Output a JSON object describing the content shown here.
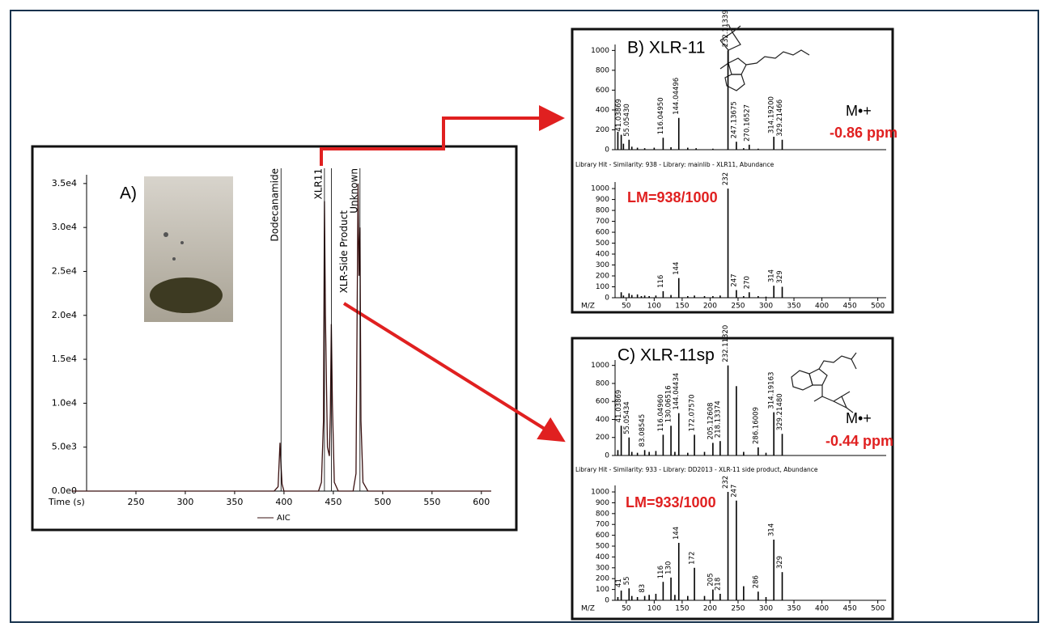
{
  "chart_data": [
    {
      "type": "line",
      "panel": "A)",
      "xlabel": "Time (s)",
      "x": [
        185,
        390,
        394,
        396,
        397,
        398,
        400,
        435,
        438,
        440,
        441,
        442,
        444,
        446,
        447,
        448,
        449,
        451,
        455,
        470,
        473,
        475,
        476,
        477,
        478,
        480,
        485,
        610
      ],
      "series": [
        {
          "name": "AIC",
          "color": "#3a1010",
          "values": [
            0,
            0,
            500,
            5500,
            3000,
            800,
            0,
            0,
            1000,
            8000,
            33000,
            20000,
            5000,
            4000,
            9000,
            19000,
            10000,
            1000,
            0,
            0,
            2000,
            35000,
            24500,
            30000,
            8000,
            1000,
            0,
            0
          ]
        }
      ],
      "xlim": [
        200,
        610
      ],
      "ylim": [
        0,
        36000
      ],
      "xticks": [
        250,
        300,
        350,
        400,
        450,
        500,
        550,
        600
      ],
      "yticks": [
        {
          "value": 0,
          "label": "0.0e0"
        },
        {
          "value": 5000,
          "label": "5.0e3"
        },
        {
          "value": 10000,
          "label": "1.0e4"
        },
        {
          "value": 15000,
          "label": "1.5e4"
        },
        {
          "value": 20000,
          "label": "2.0e4"
        },
        {
          "value": 25000,
          "label": "2.5e4"
        },
        {
          "value": 30000,
          "label": "3.0e4"
        },
        {
          "value": 35000,
          "label": "3.5e4"
        }
      ],
      "annotations": [
        {
          "text": "Dodecanamide",
          "x": 397
        },
        {
          "text": "XLR11",
          "x": 441
        },
        {
          "text": "XLR-Side Product",
          "x": 448
        },
        {
          "text": "Unknown",
          "x": 477
        }
      ]
    },
    {
      "type": "stem",
      "panel": "B) XLR-11",
      "ion": "M•+",
      "ppm": "-0.86 ppm",
      "color": "#000000",
      "x": [
        35,
        41,
        45,
        55,
        60,
        70,
        83,
        100,
        116,
        130,
        144,
        160,
        175,
        205,
        232,
        247,
        260,
        270,
        286,
        314,
        329
      ],
      "values": [
        180,
        150,
        60,
        100,
        30,
        20,
        15,
        20,
        120,
        25,
        320,
        20,
        15,
        10,
        1000,
        80,
        15,
        50,
        10,
        130,
        100
      ],
      "peak_labels": [
        null,
        "41.03869",
        null,
        "55.05430",
        null,
        null,
        null,
        null,
        "116.04950",
        null,
        "144.04496",
        null,
        null,
        null,
        "232.11339",
        "247.13675",
        null,
        "270.16527",
        null,
        "314.19200",
        "329.21466"
      ],
      "xlim": [
        30,
        515
      ],
      "ylim": [
        0,
        1060
      ],
      "yticks": [
        0,
        200,
        400,
        600,
        800,
        1000
      ]
    },
    {
      "type": "stem",
      "header": "Library Hit - Similarity: 938 - Library: mainlib - XLR11, Abundance",
      "annotation": "LM=938/1000",
      "xlabel": "M/Z",
      "color": "#000000",
      "x": [
        41,
        45,
        55,
        60,
        70,
        77,
        83,
        91,
        103,
        116,
        130,
        144,
        160,
        172,
        190,
        205,
        218,
        232,
        247,
        260,
        270,
        286,
        300,
        314,
        329
      ],
      "values": [
        50,
        20,
        40,
        25,
        30,
        15,
        20,
        15,
        20,
        60,
        25,
        180,
        15,
        20,
        15,
        15,
        20,
        1000,
        70,
        15,
        50,
        15,
        10,
        110,
        100
      ],
      "peak_labels": [
        null,
        null,
        null,
        null,
        null,
        null,
        null,
        null,
        null,
        "116",
        null,
        "144",
        null,
        null,
        null,
        null,
        null,
        "232",
        "247",
        null,
        "270",
        null,
        null,
        "314",
        "329"
      ],
      "xlim": [
        30,
        515
      ],
      "ylim": [
        0,
        1060
      ],
      "yticks": [
        0,
        100,
        200,
        300,
        400,
        500,
        600,
        700,
        800,
        900,
        1000
      ],
      "xticks": [
        50,
        100,
        150,
        200,
        250,
        300,
        350,
        400,
        450,
        500
      ]
    },
    {
      "type": "stem",
      "panel": "C) XLR-11sp",
      "ion": "M•+",
      "ppm": "-0.44 ppm",
      "color": "#000000",
      "x": [
        35,
        41,
        55,
        60,
        70,
        83,
        91,
        103,
        116,
        130,
        137,
        144,
        160,
        172,
        190,
        205,
        218,
        232,
        247,
        260,
        286,
        300,
        314,
        329
      ],
      "values": [
        60,
        330,
        200,
        40,
        30,
        60,
        40,
        50,
        230,
        330,
        40,
        470,
        30,
        230,
        40,
        140,
        160,
        1000,
        770,
        40,
        90,
        30,
        480,
        240
      ],
      "peak_labels": [
        null,
        "41.03869",
        "55.05434",
        null,
        null,
        "83.08545",
        null,
        null,
        "116.04960",
        "130.06516",
        null,
        "144.04434",
        null,
        "172.07570",
        null,
        "205.12608",
        "218.13374",
        "232.11320",
        null,
        null,
        "286.16009",
        null,
        "314.19163",
        "329.21480"
      ],
      "xlim": [
        30,
        515
      ],
      "ylim": [
        0,
        1060
      ],
      "yticks": [
        0,
        200,
        400,
        600,
        800,
        1000
      ]
    },
    {
      "type": "stem",
      "header": "Library Hit - Similarity: 933 - Library: DD2013 - XLR-11 side product, Abundance",
      "annotation": "LM=933/1000",
      "xlabel": "M/Z",
      "color": "#000000",
      "x": [
        35,
        41,
        55,
        60,
        70,
        83,
        91,
        103,
        116,
        130,
        137,
        144,
        160,
        172,
        190,
        205,
        218,
        232,
        247,
        260,
        286,
        300,
        314,
        329
      ],
      "values": [
        30,
        90,
        110,
        40,
        30,
        40,
        50,
        60,
        170,
        210,
        50,
        530,
        40,
        300,
        40,
        100,
        60,
        1000,
        920,
        130,
        80,
        30,
        560,
        260
      ],
      "peak_labels": [
        null,
        "41",
        "55",
        null,
        null,
        "83",
        null,
        null,
        "116",
        "130",
        null,
        "144",
        null,
        "172",
        null,
        "205",
        "218",
        "232",
        "247",
        null,
        "286",
        null,
        "314",
        "329"
      ],
      "xlim": [
        30,
        515
      ],
      "ylim": [
        0,
        1060
      ],
      "yticks": [
        0,
        100,
        200,
        300,
        400,
        500,
        600,
        700,
        800,
        900,
        1000
      ],
      "xticks": [
        50,
        100,
        150,
        200,
        250,
        300,
        350,
        400,
        450,
        500
      ]
    }
  ]
}
